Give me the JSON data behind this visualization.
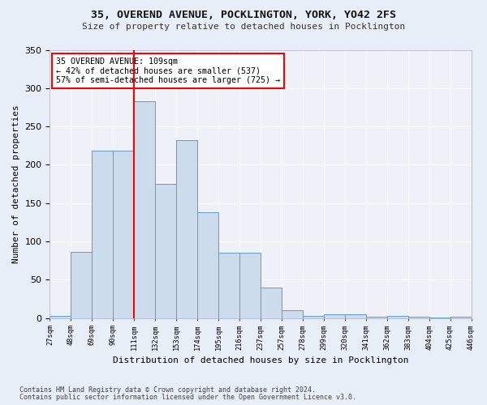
{
  "title": "35, OVEREND AVENUE, POCKLINGTON, YORK, YO42 2FS",
  "subtitle": "Size of property relative to detached houses in Pocklington",
  "xlabel": "Distribution of detached houses by size in Pocklington",
  "ylabel": "Number of detached properties",
  "bar_values": [
    3,
    86,
    218,
    218,
    283,
    175,
    232,
    138,
    85,
    85,
    40,
    10,
    3,
    5,
    5,
    2,
    3,
    2,
    1,
    2
  ],
  "bin_labels": [
    "27sqm",
    "48sqm",
    "69sqm",
    "90sqm",
    "111sqm",
    "132sqm",
    "153sqm",
    "174sqm",
    "195sqm",
    "216sqm",
    "237sqm",
    "257sqm",
    "278sqm",
    "299sqm",
    "320sqm",
    "341sqm",
    "362sqm",
    "383sqm",
    "404sqm",
    "425sqm",
    "446sqm"
  ],
  "bar_color": "#ccdcec",
  "bar_edge_color": "#6699cc",
  "vline_color": "red",
  "annotation_text": "35 OVEREND AVENUE: 109sqm\n← 42% of detached houses are smaller (537)\n57% of semi-detached houses are larger (725) →",
  "annotation_box_color": "white",
  "annotation_box_edge_color": "red",
  "ylim": [
    0,
    350
  ],
  "yticks": [
    0,
    50,
    100,
    150,
    200,
    250,
    300,
    350
  ],
  "footer1": "Contains HM Land Registry data © Crown copyright and database right 2024.",
  "footer2": "Contains public sector information licensed under the Open Government Licence v3.0.",
  "bg_color": "#e8eef8",
  "plot_bg_color": "#eef2f8",
  "grid_color": "white"
}
